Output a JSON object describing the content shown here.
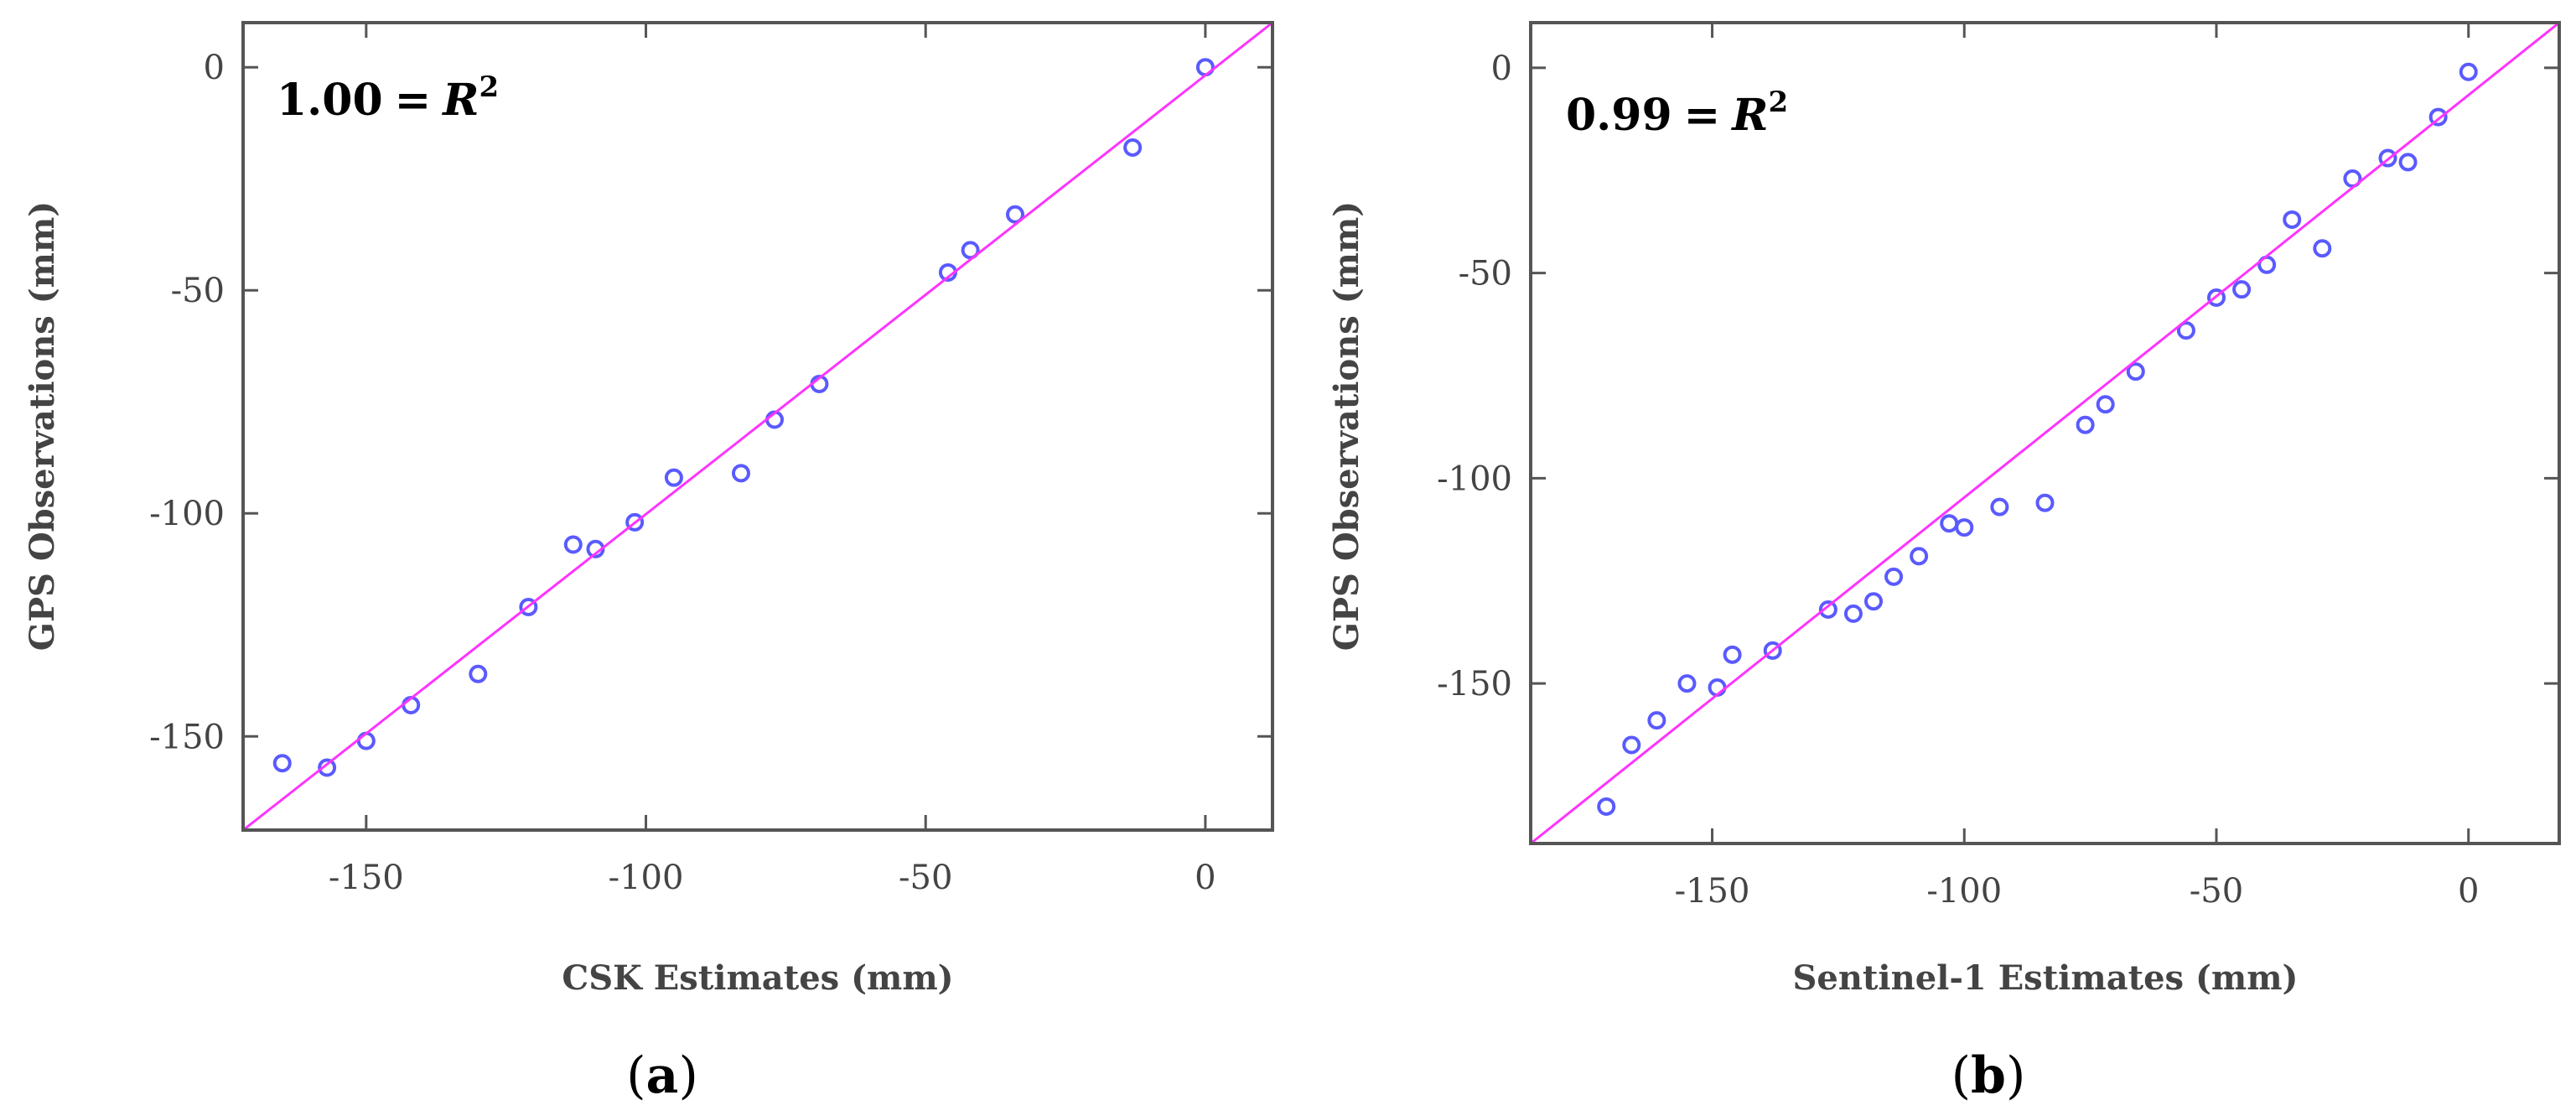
{
  "colors": {
    "axis": "#555555",
    "point": "#5a5aff",
    "fit_line": "#ff33ff",
    "text": "#444444"
  },
  "chart_data": [
    {
      "type": "scatter",
      "panel_label": "a",
      "annotation": {
        "value": "1.00",
        "equals": "=",
        "symbol": "R",
        "exponent": "2"
      },
      "xlabel": "CSK Estimates (mm)",
      "ylabel": "GPS Observations (mm)",
      "xlim": [
        -172,
        12
      ],
      "ylim": [
        -171,
        10
      ],
      "xticks": [
        -150,
        -100,
        -50,
        0
      ],
      "yticks": [
        0,
        -50,
        -100,
        -150
      ],
      "fit_line": {
        "from": [
          -172,
          -171
        ],
        "to": [
          12,
          10
        ]
      },
      "points": [
        {
          "x": -165,
          "y": -156
        },
        {
          "x": -157,
          "y": -157
        },
        {
          "x": -150,
          "y": -151
        },
        {
          "x": -142,
          "y": -143
        },
        {
          "x": -130,
          "y": -136
        },
        {
          "x": -121,
          "y": -121
        },
        {
          "x": -113,
          "y": -107
        },
        {
          "x": -109,
          "y": -108
        },
        {
          "x": -102,
          "y": -102
        },
        {
          "x": -95,
          "y": -92
        },
        {
          "x": -83,
          "y": -91
        },
        {
          "x": -77,
          "y": -79
        },
        {
          "x": -69,
          "y": -71
        },
        {
          "x": -46,
          "y": -46
        },
        {
          "x": -42,
          "y": -41
        },
        {
          "x": -34,
          "y": -33
        },
        {
          "x": -13,
          "y": -18
        },
        {
          "x": 0,
          "y": 0
        }
      ]
    },
    {
      "type": "scatter",
      "panel_label": "b",
      "annotation": {
        "value": "0.99",
        "equals": "=",
        "symbol": "R",
        "exponent": "2"
      },
      "xlabel": "Sentinel-1 Estimates (mm)",
      "ylabel": "GPS Observations (mm)",
      "xlim": [
        -186,
        18
      ],
      "ylim": [
        -189,
        11
      ],
      "xticks": [
        -150,
        -100,
        -50,
        0
      ],
      "yticks": [
        0,
        -50,
        -100,
        -150
      ],
      "fit_line": {
        "from": [
          -186,
          -189
        ],
        "to": [
          18,
          11
        ]
      },
      "points": [
        {
          "x": -171,
          "y": -180
        },
        {
          "x": -166,
          "y": -165
        },
        {
          "x": -161,
          "y": -159
        },
        {
          "x": -155,
          "y": -150
        },
        {
          "x": -149,
          "y": -151
        },
        {
          "x": -146,
          "y": -143
        },
        {
          "x": -138,
          "y": -142
        },
        {
          "x": -127,
          "y": -132
        },
        {
          "x": -122,
          "y": -133
        },
        {
          "x": -118,
          "y": -130
        },
        {
          "x": -114,
          "y": -124
        },
        {
          "x": -109,
          "y": -119
        },
        {
          "x": -103,
          "y": -111
        },
        {
          "x": -100,
          "y": -112
        },
        {
          "x": -93,
          "y": -107
        },
        {
          "x": -84,
          "y": -106
        },
        {
          "x": -76,
          "y": -87
        },
        {
          "x": -72,
          "y": -82
        },
        {
          "x": -66,
          "y": -74
        },
        {
          "x": -56,
          "y": -64
        },
        {
          "x": -50,
          "y": -56
        },
        {
          "x": -45,
          "y": -54
        },
        {
          "x": -40,
          "y": -48
        },
        {
          "x": -35,
          "y": -37
        },
        {
          "x": -29,
          "y": -44
        },
        {
          "x": -23,
          "y": -27
        },
        {
          "x": -16,
          "y": -22
        },
        {
          "x": -12,
          "y": -23
        },
        {
          "x": -6,
          "y": -12
        },
        {
          "x": 0,
          "y": -1
        }
      ]
    }
  ]
}
